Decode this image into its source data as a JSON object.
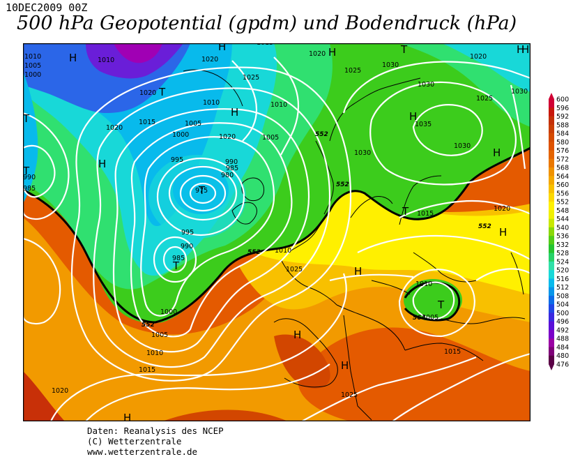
{
  "header": {
    "date": "10DEC2009 00Z",
    "title": "500 hPa Geopotential (gpdm) und Bodendruck (hPa)"
  },
  "colors": {
    "heights": [
      "#5a0046",
      "#7e0078",
      "#9a00a4",
      "#7a00c8",
      "#5a10d8",
      "#3a28e0",
      "#2046e6",
      "#0c6ce8",
      "#0896ea",
      "#08baec",
      "#18d8d8",
      "#30e0a8",
      "#26d268",
      "#24c430",
      "#52cc18",
      "#8ad808",
      "#c8e800",
      "#f0f000",
      "#fff000",
      "#fcd800",
      "#f8c000",
      "#f4a800",
      "#f09200",
      "#ea7800",
      "#e46400",
      "#de5200",
      "#d44a00",
      "#ca3e04",
      "#c43008",
      "#c8180c",
      "#d00034"
    ],
    "contour": "#ffffff",
    "coast": "#000000"
  },
  "legend": {
    "levels": [
      "600",
      "596",
      "592",
      "588",
      "584",
      "580",
      "576",
      "572",
      "568",
      "564",
      "560",
      "556",
      "552",
      "548",
      "544",
      "540",
      "536",
      "532",
      "528",
      "524",
      "520",
      "516",
      "512",
      "508",
      "504",
      "500",
      "496",
      "492",
      "488",
      "484",
      "480",
      "476"
    ]
  },
  "pressure_labels": [
    "1010",
    "1005",
    "1000",
    "1010",
    "1020",
    "1015",
    "1020",
    "1020",
    "1010",
    "1005",
    "1000",
    "995",
    "990",
    "985",
    "980",
    "975",
    "1020",
    "1010",
    "1005",
    "1025",
    "1015",
    "1020",
    "1030",
    "1035",
    "1030",
    "1025",
    "1030",
    "1030",
    "1025",
    "1020",
    "990",
    "985",
    "995",
    "1000",
    "1005",
    "1010",
    "1015",
    "1020",
    "1010",
    "1020",
    "1025",
    "1015",
    "1010",
    "1005",
    "1015",
    "1025",
    "990",
    "985",
    "1030"
  ],
  "height_labels": [
    "552",
    "552",
    "552",
    "552",
    "552",
    "564"
  ],
  "pressure_centers": [
    "H",
    "H",
    "T",
    "T",
    "H",
    "H",
    "T",
    "H",
    "H",
    "T",
    "H",
    "H",
    "T",
    "H",
    "H",
    "T",
    "H",
    "H",
    "T",
    "T",
    "H",
    "H"
  ],
  "credits": {
    "line1": "Daten: Reanalysis des NCEP",
    "line2": "(C) Wetterzentrale",
    "line3": "www.wetterzentrale.de"
  }
}
